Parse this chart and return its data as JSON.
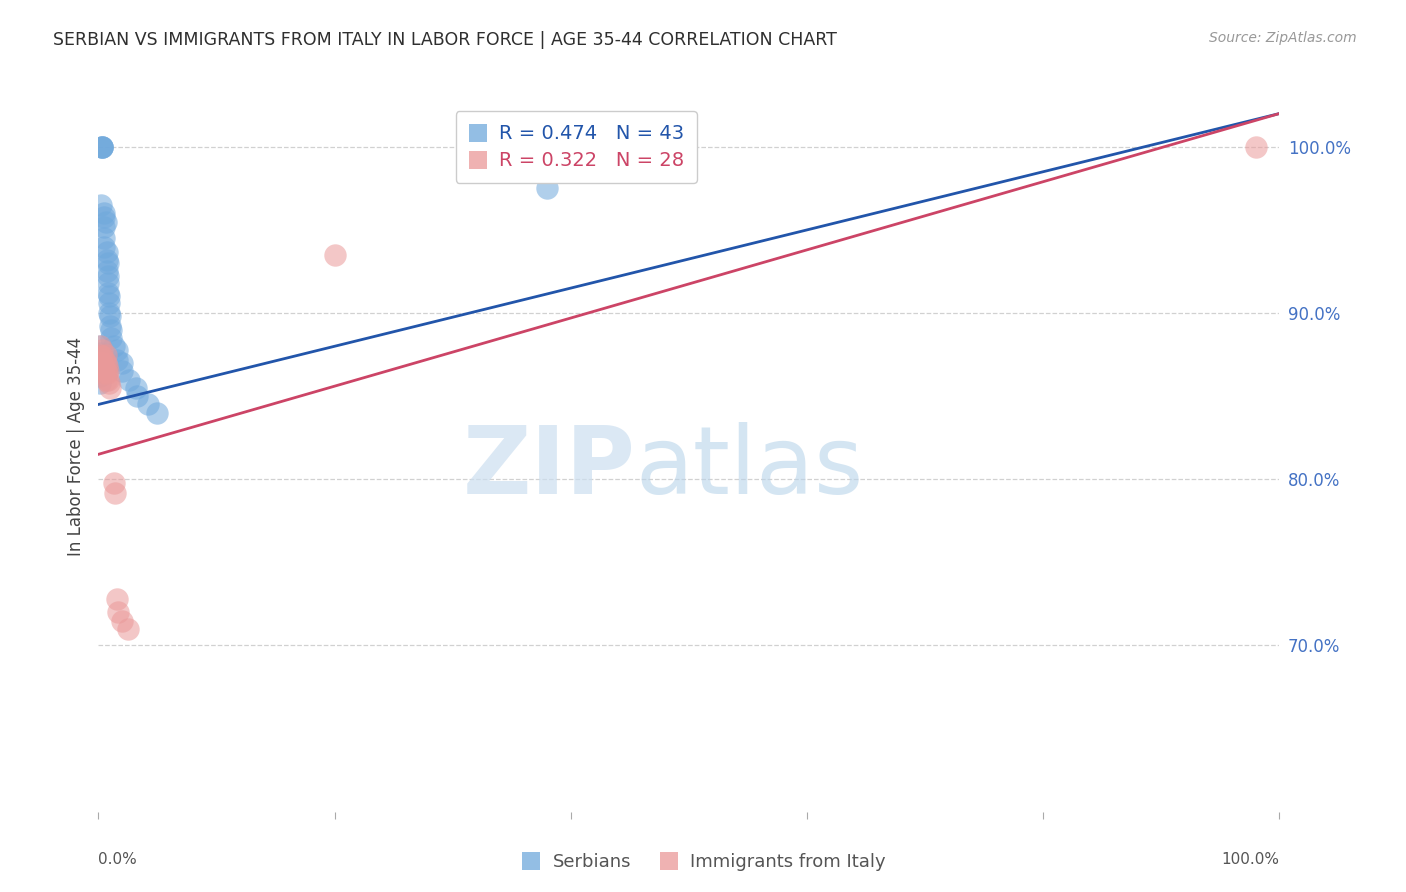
{
  "title": "SERBIAN VS IMMIGRANTS FROM ITALY IN LABOR FORCE | AGE 35-44 CORRELATION CHART",
  "source": "Source: ZipAtlas.com",
  "ylabel": "In Labor Force | Age 35-44",
  "ytick_labels": [
    "70.0%",
    "80.0%",
    "90.0%",
    "100.0%"
  ],
  "ytick_values": [
    0.7,
    0.8,
    0.9,
    1.0
  ],
  "xlim": [
    0.0,
    1.0
  ],
  "ylim": [
    0.6,
    1.04
  ],
  "legend_r_serbian": "R = 0.474",
  "legend_n_serbian": "N = 43",
  "legend_r_italy": "R = 0.322",
  "legend_n_italy": "N = 28",
  "serbian_color": "#6fa8dc",
  "italy_color": "#ea9999",
  "trend_serbian_color": "#2255aa",
  "trend_italy_color": "#cc4466",
  "bg_color": "#ffffff",
  "grid_color": "#cccccc",
  "serbian_trend_x0": 0.0,
  "serbian_trend_y0": 0.845,
  "serbian_trend_x1": 1.0,
  "serbian_trend_y1": 1.02,
  "italy_trend_x0": 0.0,
  "italy_trend_y0": 0.815,
  "italy_trend_x1": 1.0,
  "italy_trend_y1": 1.02,
  "serbian_x": [
    0.002,
    0.003,
    0.003,
    0.003,
    0.003,
    0.005,
    0.005,
    0.005,
    0.005,
    0.005,
    0.006,
    0.007,
    0.007,
    0.007,
    0.008,
    0.008,
    0.008,
    0.008,
    0.009,
    0.009,
    0.009,
    0.01,
    0.01,
    0.011,
    0.011,
    0.013,
    0.016,
    0.016,
    0.02,
    0.02,
    0.026,
    0.032,
    0.033,
    0.042,
    0.05,
    0.38,
    0.001,
    0.001,
    0.001,
    0.001,
    0.001,
    0.001,
    0.001
  ],
  "serbian_y": [
    0.965,
    1.0,
    1.0,
    1.0,
    1.0,
    0.96,
    0.958,
    0.952,
    0.945,
    0.94,
    0.955,
    0.937,
    0.932,
    0.925,
    0.93,
    0.922,
    0.918,
    0.912,
    0.91,
    0.906,
    0.9,
    0.898,
    0.892,
    0.89,
    0.885,
    0.88,
    0.878,
    0.872,
    0.87,
    0.865,
    0.86,
    0.855,
    0.85,
    0.845,
    0.84,
    0.975,
    0.88,
    0.876,
    0.872,
    0.868,
    0.865,
    0.862,
    0.858
  ],
  "italy_x": [
    0.001,
    0.001,
    0.001,
    0.003,
    0.003,
    0.003,
    0.003,
    0.005,
    0.005,
    0.005,
    0.007,
    0.007,
    0.008,
    0.008,
    0.009,
    0.01,
    0.013,
    0.014,
    0.016,
    0.017,
    0.02,
    0.025,
    0.2,
    0.98,
    0.006,
    0.006,
    0.006,
    0.006
  ],
  "italy_y": [
    0.88,
    0.875,
    0.87,
    0.878,
    0.874,
    0.87,
    0.865,
    0.872,
    0.868,
    0.864,
    0.868,
    0.864,
    0.865,
    0.86,
    0.858,
    0.855,
    0.798,
    0.792,
    0.728,
    0.72,
    0.715,
    0.71,
    0.935,
    1.0,
    0.875,
    0.87,
    0.865,
    0.86
  ]
}
